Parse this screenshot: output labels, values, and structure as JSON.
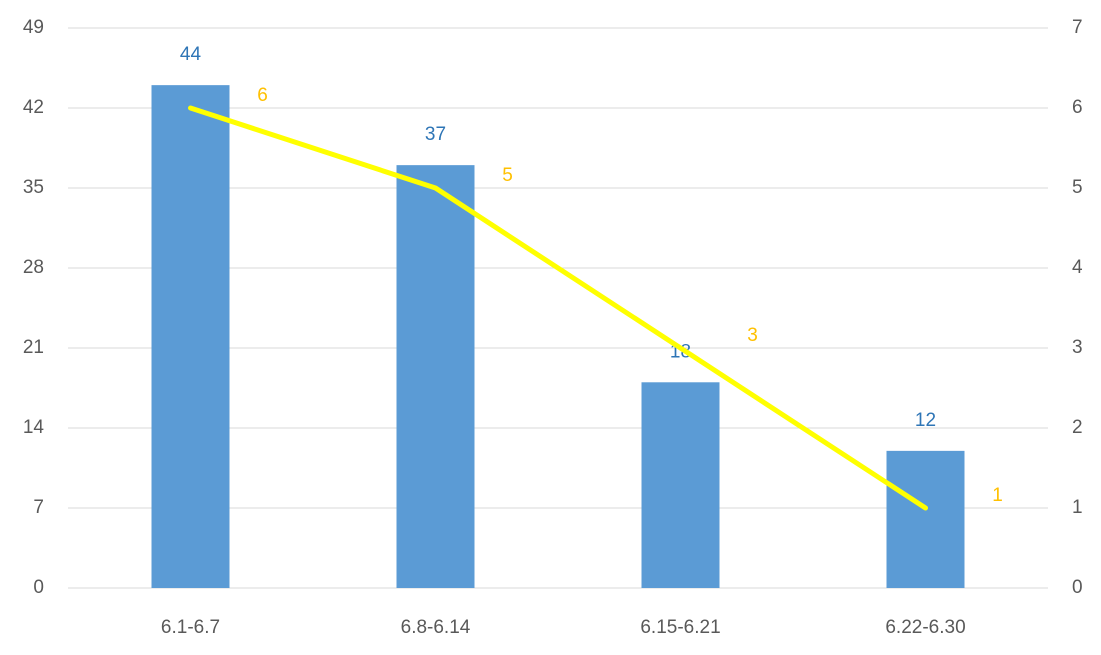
{
  "chart_data": {
    "type": "bar",
    "categories": [
      "6.1-6.7",
      "6.8-6.14",
      "6.15-6.21",
      "6.22-6.30"
    ],
    "series": [
      {
        "type": "bar",
        "color": "#5b9bd5",
        "label_color": "#2e75b6",
        "values": [
          44,
          37,
          18,
          12
        ]
      },
      {
        "type": "line",
        "axis": "y2",
        "color": "#ffff00",
        "label_color": "#ffc000",
        "values": [
          6,
          5,
          3,
          1
        ]
      }
    ],
    "ylim": [
      0,
      49
    ],
    "yticks": [
      0,
      7,
      14,
      21,
      28,
      35,
      42,
      49
    ],
    "y2lim": [
      0,
      7
    ],
    "y2ticks": [
      0,
      1,
      2,
      3,
      4,
      5,
      6,
      7
    ],
    "grid": true
  }
}
